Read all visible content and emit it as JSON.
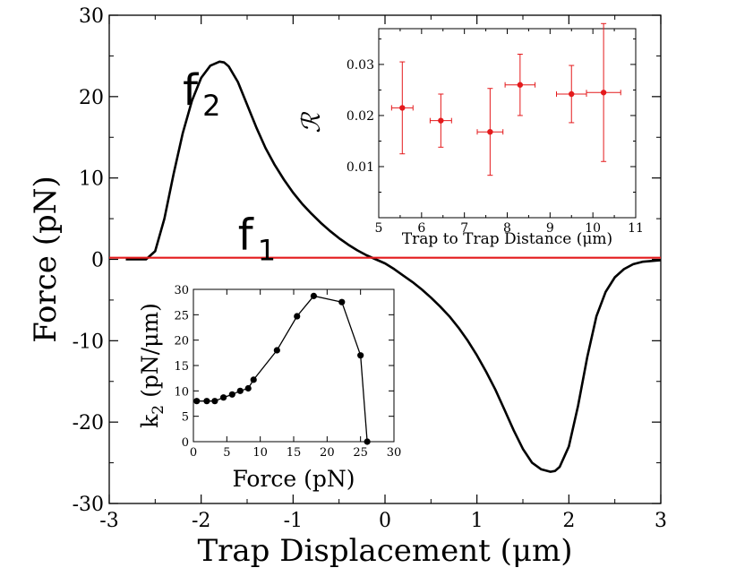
{
  "chart_data": [
    {
      "type": "line",
      "xlabel": "Trap Displacement (μm)",
      "ylabel": "Force (pN)",
      "xlim": [
        -3,
        3
      ],
      "ylim": [
        -30,
        30
      ],
      "xticks": [
        "-3",
        "-2",
        "-1",
        "0",
        "1",
        "2",
        "3"
      ],
      "yticks": [
        "-30",
        "-20",
        "-10",
        "0",
        "10",
        "20",
        "30"
      ],
      "annotations": [
        {
          "text": "f",
          "sub": "2",
          "at": [
            -2.2,
            19
          ]
        },
        {
          "text": "f",
          "sub": "1",
          "at": [
            -1.6,
            1.2
          ]
        }
      ],
      "series": [
        {
          "label": "f2",
          "color": "#000000",
          "x": [
            -2.82,
            -2.6,
            -2.5,
            -2.4,
            -2.3,
            -2.2,
            -2.1,
            -2.0,
            -1.9,
            -1.8,
            -1.75,
            -1.7,
            -1.6,
            -1.5,
            -1.4,
            -1.3,
            -1.2,
            -1.1,
            -1.0,
            -0.9,
            -0.8,
            -0.7,
            -0.6,
            -0.5,
            -0.4,
            -0.3,
            -0.2,
            -0.1,
            0.0,
            0.1,
            0.2,
            0.3,
            0.4,
            0.5,
            0.6,
            0.7,
            0.8,
            0.9,
            1.0,
            1.1,
            1.2,
            1.3,
            1.4,
            1.5,
            1.6,
            1.7,
            1.8,
            1.85,
            1.9,
            2.0,
            2.1,
            2.2,
            2.3,
            2.4,
            2.5,
            2.6,
            2.7,
            2.8,
            2.9,
            3.0
          ],
          "y": [
            0,
            0,
            1.0,
            5.0,
            10.5,
            15.5,
            19.5,
            22.3,
            23.8,
            24.3,
            24.2,
            23.7,
            21.8,
            19.0,
            16.2,
            13.7,
            11.6,
            9.8,
            8.2,
            6.8,
            5.6,
            4.5,
            3.5,
            2.6,
            1.8,
            1.1,
            0.5,
            0.0,
            -0.5,
            -1.2,
            -2.0,
            -2.8,
            -3.7,
            -4.7,
            -5.8,
            -7.0,
            -8.4,
            -10.0,
            -11.8,
            -13.8,
            -16.0,
            -18.5,
            -21.0,
            -23.3,
            -25.0,
            -25.8,
            -26.1,
            -26.0,
            -25.5,
            -23.0,
            -18.0,
            -12.0,
            -7.0,
            -4.0,
            -2.2,
            -1.2,
            -0.6,
            -0.3,
            -0.2,
            -0.1
          ]
        },
        {
          "label": "f1",
          "color": "#e41a1c",
          "x": [
            -3.0,
            -2.0,
            -1.0,
            0.0,
            1.0,
            2.0,
            3.0
          ],
          "y": [
            0.2,
            0.2,
            0.2,
            0.2,
            0.2,
            0.2,
            0.2
          ]
        }
      ]
    },
    {
      "type": "scatter",
      "title": "",
      "xlabel": "Trap to Trap Distance (μm)",
      "ylabel": "ℛ",
      "xlim": [
        5,
        11
      ],
      "ylim": [
        0,
        0.037
      ],
      "xticks": [
        "5",
        "6",
        "7",
        "8",
        "9",
        "10",
        "11"
      ],
      "yticks": [
        "0.01",
        "0.02",
        "0.03"
      ],
      "color": "#e41a1c",
      "points": [
        {
          "x": 5.55,
          "y": 0.0215,
          "xerr": 0.25,
          "yerr": 0.009
        },
        {
          "x": 6.45,
          "y": 0.019,
          "xerr": 0.25,
          "yerr": 0.0052
        },
        {
          "x": 7.6,
          "y": 0.0168,
          "xerr": 0.3,
          "yerr": 0.0085
        },
        {
          "x": 8.3,
          "y": 0.026,
          "xerr": 0.35,
          "yerr": 0.006
        },
        {
          "x": 9.5,
          "y": 0.0242,
          "xerr": 0.35,
          "yerr": 0.0056
        },
        {
          "x": 10.25,
          "y": 0.0245,
          "xerr": 0.4,
          "yerr": 0.0135
        }
      ]
    },
    {
      "type": "line",
      "xlabel": "Force (pN)",
      "ylabel": "k",
      "ylabel_sub": "2",
      "ylabel_tail": " (pN/μm)",
      "xlim": [
        0,
        30
      ],
      "ylim": [
        0,
        30
      ],
      "xticks": [
        "0",
        "5",
        "10",
        "15",
        "20",
        "25",
        "30"
      ],
      "yticks": [
        "0",
        "5",
        "10",
        "15",
        "20",
        "25",
        "30"
      ],
      "color": "#000000",
      "x": [
        0.5,
        2,
        3.2,
        4.5,
        5.8,
        7,
        8.2,
        9,
        12.5,
        15.5,
        18,
        22.2,
        25,
        26
      ],
      "y": [
        8,
        8,
        8,
        8.7,
        9.3,
        10,
        10.5,
        12.2,
        18,
        24.7,
        28.7,
        27.5,
        17,
        0
      ]
    }
  ]
}
